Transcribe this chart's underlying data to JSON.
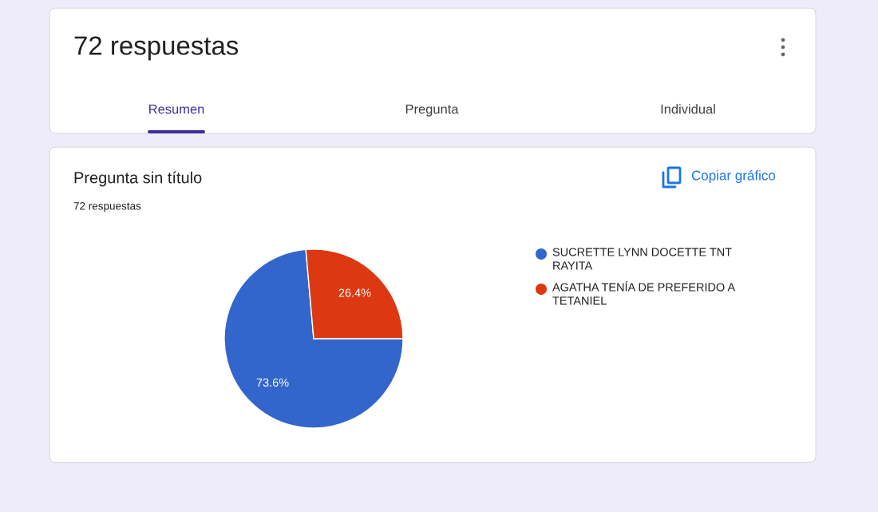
{
  "chart_data": {
    "type": "pie",
    "title": "Pregunta sin título",
    "subtitle": "72 respuestas",
    "categories": [
      "SUCRETTE LYNN DOCETTE TNT RAYITA",
      "AGATHA TENÍA DE PREFERIDO A TETANIEL"
    ],
    "values": [
      73.6,
      26.4
    ],
    "colors": [
      "#3366cc",
      "#dc3912"
    ],
    "value_labels": [
      "73.6%",
      "26.4%"
    ],
    "legend": "right",
    "annotations": [
      "72 respuestas",
      "Resumen",
      "Pregunta",
      "Individual",
      "Copiar gráfico"
    ]
  }
}
